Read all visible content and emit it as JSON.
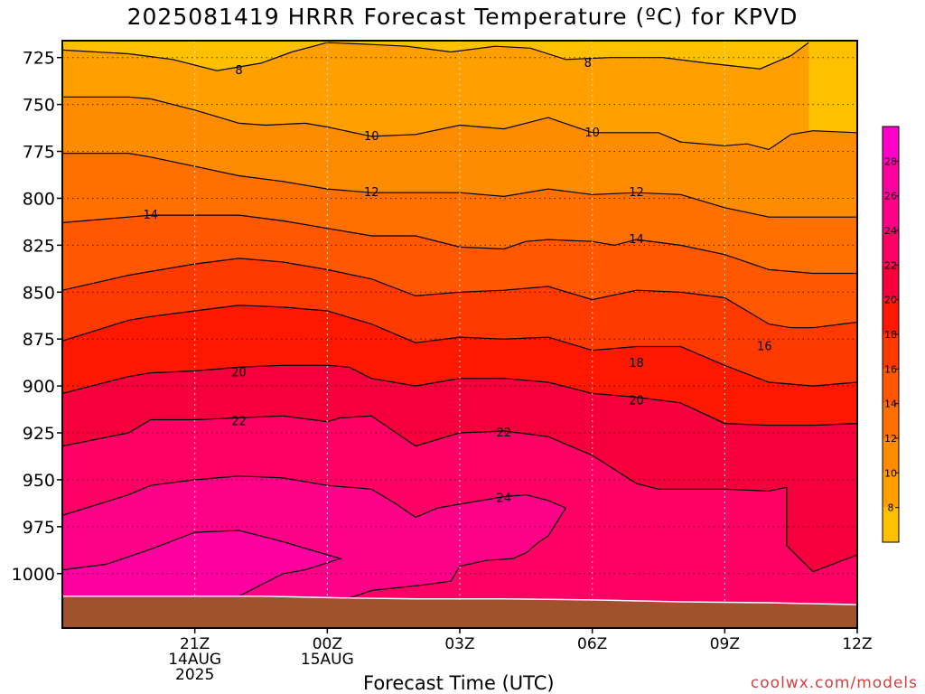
{
  "chart_data": {
    "type": "area",
    "title": "2025081419 HRRR Forecast Temperature (ºC) for KPVD",
    "xlabel": "Forecast Time (UTC)",
    "ylabel": "",
    "credit": "coolwx.com/models",
    "x_ticks": [
      {
        "lines": [
          "21Z",
          "14AUG",
          "2025"
        ]
      },
      {
        "lines": [
          "00Z",
          "15AUG"
        ]
      },
      {
        "lines": [
          "03Z"
        ]
      },
      {
        "lines": [
          "06Z"
        ]
      },
      {
        "lines": [
          "09Z"
        ]
      },
      {
        "lines": [
          "12Z"
        ]
      }
    ],
    "xlim_hours": [
      18,
      36
    ],
    "ylim_hpa": [
      1029,
      716
    ],
    "y_ticks": [
      725,
      750,
      775,
      800,
      825,
      850,
      875,
      900,
      925,
      950,
      975,
      1000
    ],
    "grid": true,
    "ground_color": "#a0522d",
    "colorbar": {
      "placement": "right",
      "ticks": [
        8,
        10,
        12,
        14,
        16,
        18,
        20,
        22,
        24,
        26,
        28
      ],
      "range": [
        6,
        30
      ]
    },
    "colors": [
      {
        "range": [
          6,
          8
        ],
        "color": "#ffc000"
      },
      {
        "range": [
          8,
          10
        ],
        "color": "#ffa000"
      },
      {
        "range": [
          10,
          12
        ],
        "color": "#ff8c00"
      },
      {
        "range": [
          12,
          14
        ],
        "color": "#ff7000"
      },
      {
        "range": [
          14,
          16
        ],
        "color": "#ff5800"
      },
      {
        "range": [
          16,
          18
        ],
        "color": "#ff3a00"
      },
      {
        "range": [
          18,
          20
        ],
        "color": "#ff1800"
      },
      {
        "range": [
          20,
          22
        ],
        "color": "#f5003c"
      },
      {
        "range": [
          22,
          24
        ],
        "color": "#ff0064"
      },
      {
        "range": [
          24,
          26
        ],
        "color": "#ff0088"
      },
      {
        "range": [
          26,
          28
        ],
        "color": "#ff00a0"
      },
      {
        "range": [
          28,
          30
        ],
        "color": "#ff00c8"
      }
    ],
    "contour_labels": [
      {
        "value": 8,
        "hour": 22.0,
        "hpa": 732
      },
      {
        "value": 8,
        "hour": 29.9,
        "hpa": 728
      },
      {
        "value": 10,
        "hour": 25.0,
        "hpa": 767
      },
      {
        "value": 10,
        "hour": 30.0,
        "hpa": 765
      },
      {
        "value": 12,
        "hour": 25.0,
        "hpa": 797
      },
      {
        "value": 12,
        "hour": 31.0,
        "hpa": 797
      },
      {
        "value": 14,
        "hour": 20.0,
        "hpa": 809
      },
      {
        "value": 14,
        "hour": 31.0,
        "hpa": 822
      },
      {
        "value": 16,
        "hour": 33.9,
        "hpa": 879
      },
      {
        "value": 18,
        "hour": 31.0,
        "hpa": 888
      },
      {
        "value": 20,
        "hour": 22.0,
        "hpa": 893
      },
      {
        "value": 20,
        "hour": 31.0,
        "hpa": 908
      },
      {
        "value": 22,
        "hour": 22.0,
        "hpa": 919
      },
      {
        "value": 22,
        "hour": 28.0,
        "hpa": 925
      },
      {
        "value": 24,
        "hour": 28.0,
        "hpa": 960
      }
    ],
    "contours": [
      {
        "value": 8,
        "points": [
          [
            18.0,
            721
          ],
          [
            19.5,
            723
          ],
          [
            20.5,
            726
          ],
          [
            21.5,
            732
          ],
          [
            22.5,
            728
          ],
          [
            23.2,
            722
          ],
          [
            24.0,
            717
          ],
          [
            25.0,
            718
          ],
          [
            25.8,
            719
          ],
          [
            26.8,
            722
          ],
          [
            27.8,
            719
          ],
          [
            28.6,
            720
          ],
          [
            29.4,
            726
          ],
          [
            30.4,
            725
          ],
          [
            31.6,
            725
          ],
          [
            32.6,
            728
          ],
          [
            33.8,
            731
          ],
          [
            34.5,
            724
          ],
          [
            34.9,
            717
          ]
        ]
      },
      {
        "value": 10,
        "points": [
          [
            18.0,
            746
          ],
          [
            19.5,
            746
          ],
          [
            20.0,
            747
          ],
          [
            21.0,
            753
          ],
          [
            22.0,
            760
          ],
          [
            22.6,
            761
          ],
          [
            23.5,
            760
          ],
          [
            24.0,
            762
          ],
          [
            25.0,
            767
          ],
          [
            26.0,
            766
          ],
          [
            27.0,
            761
          ],
          [
            28.0,
            763
          ],
          [
            29.0,
            757
          ],
          [
            30.0,
            765
          ],
          [
            31.5,
            765
          ],
          [
            32.0,
            770
          ],
          [
            33.0,
            772
          ],
          [
            33.5,
            771
          ],
          [
            34.0,
            774
          ],
          [
            34.5,
            766
          ],
          [
            35.0,
            764
          ],
          [
            36.0,
            765
          ]
        ]
      },
      {
        "value": 12,
        "points": [
          [
            18.0,
            776
          ],
          [
            19.5,
            776
          ],
          [
            20.0,
            778
          ],
          [
            21.0,
            783
          ],
          [
            22.0,
            788
          ],
          [
            23.0,
            791
          ],
          [
            24.0,
            795
          ],
          [
            25.0,
            797
          ],
          [
            26.0,
            797
          ],
          [
            27.0,
            797
          ],
          [
            28.0,
            799
          ],
          [
            29.0,
            795
          ],
          [
            30.0,
            798
          ],
          [
            31.0,
            797
          ],
          [
            32.0,
            798
          ],
          [
            33.0,
            805
          ],
          [
            34.0,
            810
          ],
          [
            35.0,
            810
          ],
          [
            36.0,
            810
          ]
        ]
      },
      {
        "value": 14,
        "points": [
          [
            18.0,
            813
          ],
          [
            19.5,
            810
          ],
          [
            20.0,
            809
          ],
          [
            21.0,
            809
          ],
          [
            22.0,
            809
          ],
          [
            23.0,
            812
          ],
          [
            24.0,
            816
          ],
          [
            25.0,
            820
          ],
          [
            26.0,
            820
          ],
          [
            27.0,
            826
          ],
          [
            28.0,
            827
          ],
          [
            28.5,
            823
          ],
          [
            29.0,
            822
          ],
          [
            30.0,
            823
          ],
          [
            30.5,
            825
          ],
          [
            31.0,
            822
          ],
          [
            32.0,
            825
          ],
          [
            33.0,
            830
          ],
          [
            34.0,
            838
          ],
          [
            35.0,
            840
          ],
          [
            36.0,
            840
          ]
        ]
      },
      {
        "value": 16,
        "points": [
          [
            18.0,
            849
          ],
          [
            19.5,
            841
          ],
          [
            20.0,
            839
          ],
          [
            21.0,
            835
          ],
          [
            22.0,
            832
          ],
          [
            23.0,
            834
          ],
          [
            24.0,
            838
          ],
          [
            25.0,
            843
          ],
          [
            26.0,
            852
          ],
          [
            27.0,
            850
          ],
          [
            28.0,
            849
          ],
          [
            29.0,
            847
          ],
          [
            30.0,
            854
          ],
          [
            31.0,
            849
          ],
          [
            32.0,
            850
          ],
          [
            33.0,
            853
          ],
          [
            33.5,
            860
          ],
          [
            34.0,
            867
          ],
          [
            34.5,
            869
          ],
          [
            35.0,
            869
          ],
          [
            36.0,
            866
          ]
        ]
      },
      {
        "value": 18,
        "points": [
          [
            18.0,
            876
          ],
          [
            19.5,
            865
          ],
          [
            20.0,
            863
          ],
          [
            21.0,
            860
          ],
          [
            22.0,
            857
          ],
          [
            23.0,
            858
          ],
          [
            24.0,
            860
          ],
          [
            25.0,
            867
          ],
          [
            26.0,
            877
          ],
          [
            27.0,
            874
          ],
          [
            28.0,
            875
          ],
          [
            29.0,
            874
          ],
          [
            30.0,
            881
          ],
          [
            31.0,
            879
          ],
          [
            32.0,
            879
          ],
          [
            33.0,
            889
          ],
          [
            34.0,
            898
          ],
          [
            35.0,
            900
          ],
          [
            36.0,
            898
          ]
        ]
      },
      {
        "value": 20,
        "points": [
          [
            18.0,
            904
          ],
          [
            19.5,
            895
          ],
          [
            20.0,
            893
          ],
          [
            21.0,
            892
          ],
          [
            22.0,
            890
          ],
          [
            23.0,
            889
          ],
          [
            24.0,
            889
          ],
          [
            24.5,
            890
          ],
          [
            25.0,
            896
          ],
          [
            26.0,
            900
          ],
          [
            27.0,
            896
          ],
          [
            28.0,
            896
          ],
          [
            29.0,
            898
          ],
          [
            30.0,
            904
          ],
          [
            31.0,
            906
          ],
          [
            32.0,
            909
          ],
          [
            33.0,
            920
          ],
          [
            34.0,
            921
          ],
          [
            35.0,
            921
          ],
          [
            36.0,
            920
          ]
        ]
      },
      {
        "value": 22,
        "points": [
          [
            18.0,
            932
          ],
          [
            19.5,
            925
          ],
          [
            20.0,
            918
          ],
          [
            21.0,
            918
          ],
          [
            22.0,
            917
          ],
          [
            23.0,
            916
          ],
          [
            24.0,
            919
          ],
          [
            24.3,
            917
          ],
          [
            25.0,
            916
          ],
          [
            26.0,
            932
          ],
          [
            27.0,
            925
          ],
          [
            28.0,
            924
          ],
          [
            29.0,
            927
          ],
          [
            30.0,
            937
          ],
          [
            31.0,
            952
          ],
          [
            31.5,
            955
          ],
          [
            32.0,
            955
          ],
          [
            33.0,
            955
          ],
          [
            34.0,
            956
          ],
          [
            34.4,
            954
          ],
          [
            34.4,
            985
          ],
          [
            35.0,
            999
          ],
          [
            36.0,
            990
          ]
        ]
      },
      {
        "value": 24,
        "points": [
          [
            18.0,
            969
          ],
          [
            19.5,
            958
          ],
          [
            20.0,
            953
          ],
          [
            21.0,
            950
          ],
          [
            22.0,
            948
          ],
          [
            23.0,
            949
          ],
          [
            24.0,
            953
          ],
          [
            25.0,
            955
          ],
          [
            25.5,
            962
          ],
          [
            26.0,
            970
          ],
          [
            26.5,
            965
          ],
          [
            27.0,
            963
          ],
          [
            28.0,
            959
          ],
          [
            28.5,
            958
          ],
          [
            29.0,
            961
          ],
          [
            29.4,
            965
          ],
          [
            29.0,
            980
          ],
          [
            28.8,
            983
          ],
          [
            28.5,
            989
          ],
          [
            28.2,
            992
          ],
          [
            27.6,
            993
          ],
          [
            27.0,
            996
          ],
          [
            26.8,
            1004
          ],
          [
            26.2,
            1006
          ],
          [
            25.8,
            1007
          ],
          [
            25.0,
            1009
          ],
          [
            24.5,
            1013
          ]
        ]
      },
      {
        "value": 26,
        "points": [
          [
            18.0,
            998
          ],
          [
            19.0,
            995
          ],
          [
            20.0,
            987
          ],
          [
            21.0,
            978
          ],
          [
            22.0,
            977
          ],
          [
            22.5,
            980
          ],
          [
            23.0,
            983
          ],
          [
            24.0,
            990
          ],
          [
            24.3,
            992
          ],
          [
            23.5,
            998
          ],
          [
            23.0,
            1000
          ],
          [
            22.5,
            1006
          ],
          [
            22.0,
            1012
          ]
        ]
      }
    ]
  }
}
